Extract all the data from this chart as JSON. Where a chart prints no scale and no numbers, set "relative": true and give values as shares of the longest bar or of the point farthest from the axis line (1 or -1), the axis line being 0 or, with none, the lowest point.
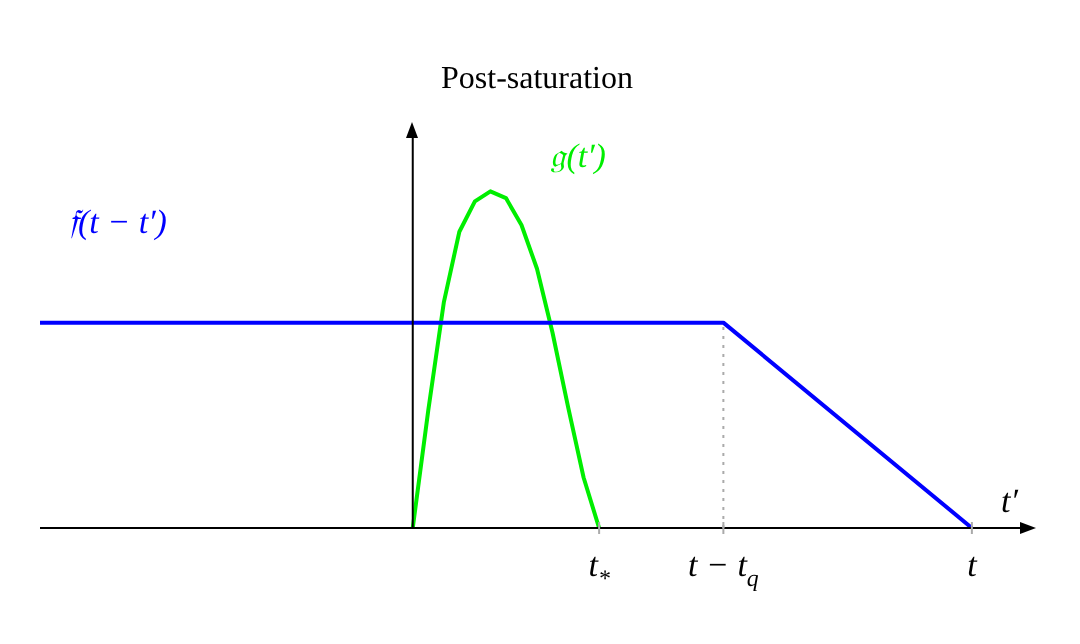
{
  "chart_data": {
    "type": "line",
    "title": "Post-saturation",
    "xlabel": "t′",
    "relative": true,
    "categories": [
      null,
      null,
      null,
      null,
      null,
      null,
      null,
      null,
      null,
      null,
      null,
      null,
      null,
      null,
      null,
      null,
      null,
      null,
      null,
      null,
      null,
      null,
      null,
      null,
      null,
      null,
      null,
      null,
      null,
      null,
      null,
      null,
      null,
      null,
      null,
      null,
      "t$_{*}$",
      null,
      null,
      null,
      null,
      null,
      null,
      null,
      "t − t$_{q}$",
      null,
      null,
      null,
      null,
      null,
      null,
      null,
      null,
      null,
      null,
      null,
      null,
      null,
      null,
      null,
      "t",
      null,
      null,
      null,
      null
    ],
    "series": [
      {
        "name": "𝔣(t − t′)",
        "color": "#0000ff",
        "values": [
          0.61,
          null,
          null,
          null,
          null,
          null,
          null,
          null,
          null,
          null,
          null,
          null,
          null,
          null,
          null,
          null,
          null,
          null,
          null,
          null,
          null,
          null,
          null,
          null,
          null,
          null,
          null,
          null,
          null,
          null,
          null,
          null,
          null,
          null,
          null,
          null,
          null,
          null,
          null,
          null,
          null,
          null,
          null,
          null,
          0.61,
          null,
          null,
          null,
          null,
          null,
          null,
          null,
          null,
          null,
          null,
          null,
          null,
          null,
          null,
          null,
          0,
          null,
          null,
          null,
          null
        ]
      },
      {
        "name": "𝔤(t′)",
        "color": "#00ee00",
        "values": [
          null,
          null,
          null,
          null,
          null,
          null,
          null,
          null,
          null,
          null,
          null,
          null,
          null,
          null,
          null,
          null,
          null,
          null,
          null,
          null,
          null,
          null,
          null,
          null,
          0,
          0.35,
          0.67,
          0.88,
          0.97,
          1,
          0.98,
          0.9,
          0.77,
          0.58,
          0.36,
          0.15,
          0,
          null,
          null,
          null,
          null,
          null,
          null,
          null,
          null,
          null,
          null,
          null,
          null,
          null,
          null,
          null,
          null,
          null,
          null,
          null,
          null,
          null,
          null,
          null,
          null,
          null,
          null,
          null,
          null
        ]
      }
    ],
    "ref_lines": [
      {
        "axis": "x",
        "value": "t − t$_{q}$",
        "color": "#aaaaaa",
        "line_style": "dotted"
      }
    ],
    "legend": false,
    "marker": "none",
    "line_style": "solid"
  }
}
